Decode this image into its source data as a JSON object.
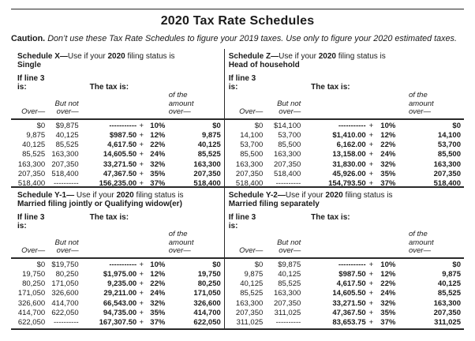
{
  "title": "2020 Tax Rate Schedules",
  "caution": {
    "label": "Caution.",
    "text": "Don’t use these Tax Rate Schedules to figure your 2019 taxes. Use only to figure your 2020 estimated taxes."
  },
  "labels": {
    "if_line": "If line 3",
    "is": "is:",
    "tax_is": "The tax is:",
    "over": "Over—",
    "but_not": "But not",
    "over2": "over—",
    "of_the": "of the",
    "amount": "amount",
    "plus": "+"
  },
  "schedules": [
    {
      "name": "Schedule X—",
      "use_prefix": "Use if your ",
      "year": "2020",
      "use_suffix": " filing status is",
      "status": "Single",
      "rows": [
        [
          "$0",
          "$9,875",
          "-----------",
          "10%",
          "$0"
        ],
        [
          "9,875",
          "40,125",
          "$987.50",
          "12%",
          "9,875"
        ],
        [
          "40,125",
          "85,525",
          "4,617.50",
          "22%",
          "40,125"
        ],
        [
          "85,525",
          "163,300",
          "14,605.50",
          "24%",
          "85,525"
        ],
        [
          "163,300",
          "207,350",
          "33,271.50",
          "32%",
          "163,300"
        ],
        [
          "207,350",
          "518,400",
          "47,367.50",
          "35%",
          "207,350"
        ],
        [
          "518,400",
          "----------",
          "156,235.00",
          "37%",
          "518,400"
        ]
      ]
    },
    {
      "name": "Schedule Z—",
      "use_prefix": "Use if your ",
      "year": "2020",
      "use_suffix": " filing status is",
      "status": "Head of household",
      "rows": [
        [
          "$0",
          "$14,100",
          "-----------",
          "10%",
          "$0"
        ],
        [
          "14,100",
          "53,700",
          "$1,410.00",
          "12%",
          "14,100"
        ],
        [
          "53,700",
          "85,500",
          "6,162.00",
          "22%",
          "53,700"
        ],
        [
          "85,500",
          "163,300",
          "13,158.00",
          "24%",
          "85,500"
        ],
        [
          "163,300",
          "207,350",
          "31,830.00",
          "32%",
          "163,300"
        ],
        [
          "207,350",
          "518,400",
          "45,926.00",
          "35%",
          "207,350"
        ],
        [
          "518,400",
          "----------",
          "154,793.50",
          "37%",
          "518,400"
        ]
      ]
    },
    {
      "name": "Schedule Y-1—",
      "use_prefix": " Use if your ",
      "year": "2020",
      "use_suffix": " filing status is",
      "status": "Married filing jointly or Qualifying widow(er)",
      "rows": [
        [
          "$0",
          "$19,750",
          "-----------",
          "10%",
          "$0"
        ],
        [
          "19,750",
          "80,250",
          "$1,975.00",
          "12%",
          "19,750"
        ],
        [
          "80,250",
          "171,050",
          "9,235.00",
          "22%",
          "80,250"
        ],
        [
          "171,050",
          "326,600",
          "29,211.00",
          "24%",
          "171,050"
        ],
        [
          "326,600",
          "414,700",
          "66,543.00",
          "32%",
          "326,600"
        ],
        [
          "414,700",
          "622,050",
          "94,735.00",
          "35%",
          "414,700"
        ],
        [
          "622,050",
          "----------",
          "167,307.50",
          "37%",
          "622,050"
        ]
      ]
    },
    {
      "name": "Schedule Y-2—",
      "use_prefix": "Use if your ",
      "year": "2020",
      "use_suffix": " filing status is",
      "status": "Married filing separately",
      "rows": [
        [
          "$0",
          "$9,875",
          "-----------",
          "10%",
          "$0"
        ],
        [
          "9,875",
          "40,125",
          "$987.50",
          "12%",
          "9,875"
        ],
        [
          "40,125",
          "85,525",
          "4,617.50",
          "22%",
          "40,125"
        ],
        [
          "85,525",
          "163,300",
          "14,605.50",
          "24%",
          "85,525"
        ],
        [
          "163,300",
          "207,350",
          "33,271.50",
          "32%",
          "163,300"
        ],
        [
          "207,350",
          "311,025",
          "47,367.50",
          "35%",
          "207,350"
        ],
        [
          "311,025",
          "----------",
          "83,653.75",
          "37%",
          "311,025"
        ]
      ]
    }
  ]
}
